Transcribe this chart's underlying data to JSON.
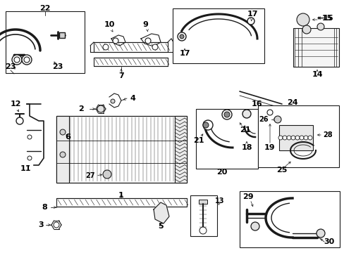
{
  "bg_color": "#ffffff",
  "line_color": "#1a1a1a",
  "text_color": "#000000",
  "fig_width": 4.89,
  "fig_height": 3.6,
  "dpi": 100,
  "label_fs": 7.0,
  "arrow_fs": 6.5
}
